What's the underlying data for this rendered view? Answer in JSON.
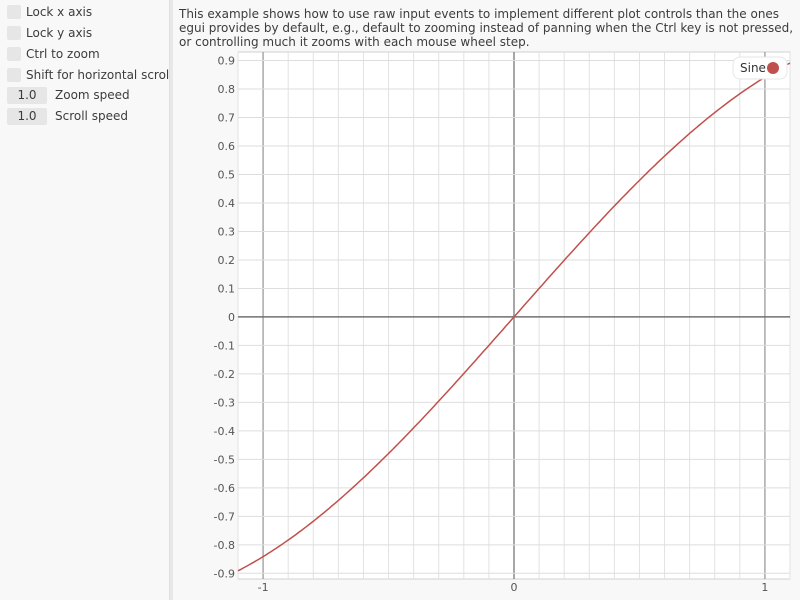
{
  "sidebar": {
    "checkboxes": [
      {
        "label": "Lock x axis",
        "checked": false
      },
      {
        "label": "Lock y axis",
        "checked": false
      },
      {
        "label": "Ctrl to zoom",
        "checked": false
      },
      {
        "label": "Shift for horizontal scroll",
        "checked": false
      }
    ],
    "drag_values": [
      {
        "value": "1.0",
        "label": "Zoom speed"
      },
      {
        "value": "1.0",
        "label": "Scroll speed"
      }
    ]
  },
  "description": "This example shows how to use raw input events to implement different plot controls than the ones egui provides by default, e.g., default to zooming instead of panning when the Ctrl key is not pressed, or controlling much it zooms with each mouse wheel step.",
  "chart_data": {
    "type": "line",
    "xlim": [
      -1.1,
      1.1
    ],
    "ylim": [
      -0.92,
      0.93
    ],
    "x_ticks": [
      "-1",
      "0",
      "1"
    ],
    "y_ticks": [
      "0.9",
      "0.8",
      "0.7",
      "0.6",
      "0.5",
      "0.4",
      "0.3",
      "0.2",
      "0.1",
      "0",
      "-0.1",
      "-0.2",
      "-0.3",
      "-0.4",
      "-0.5",
      "-0.6",
      "-0.7",
      "-0.8",
      "-0.9"
    ],
    "grid": true,
    "legend": "top-right",
    "series": [
      {
        "name": "Sine",
        "function": "sin(x)",
        "color": "#c0504d"
      }
    ]
  }
}
